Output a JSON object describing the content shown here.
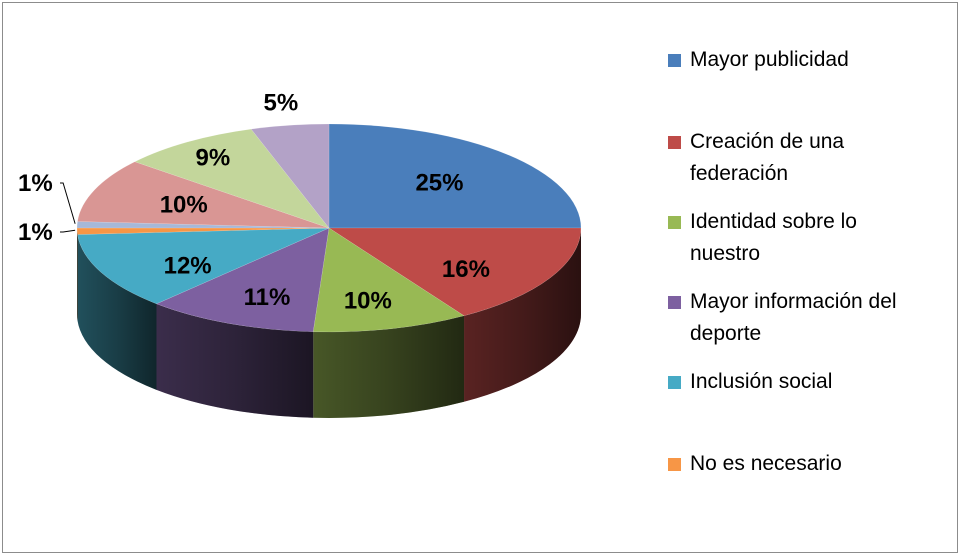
{
  "chart_data": {
    "type": "pie",
    "style": "3d",
    "title": "",
    "categories": [
      "Mayor publicidad",
      "Creación de una federación",
      "Identidad sobre lo nuestro",
      "Mayor información del deporte",
      "Inclusión social",
      "No es necesario",
      "",
      "",
      "",
      ""
    ],
    "values": [
      25,
      16,
      10,
      11,
      12,
      1,
      1,
      10,
      9,
      5
    ],
    "labels": [
      "25%",
      "16%",
      "10%",
      "11%",
      "12%",
      "1%",
      "1%",
      "10%",
      "9%",
      "5%"
    ],
    "colors": [
      "#4a7ebb",
      "#be4b48",
      "#98b954",
      "#7d60a0",
      "#46aac5",
      "#f79646",
      "#a6b8d8",
      "#d99694",
      "#c3d69b",
      "#b3a2c7"
    ],
    "legend": {
      "position": "right",
      "entries": [
        {
          "label": "Mayor publicidad",
          "color": "#4a7ebb"
        },
        {
          "label": "Creación de una federación",
          "color": "#be4b48"
        },
        {
          "label": "Identidad sobre lo nuestro",
          "color": "#98b954"
        },
        {
          "label": "Mayor información del deporte",
          "color": "#7d60a0"
        },
        {
          "label": "Inclusión social",
          "color": "#46aac5"
        },
        {
          "label": "No es necesario",
          "color": "#f79646"
        }
      ]
    }
  }
}
